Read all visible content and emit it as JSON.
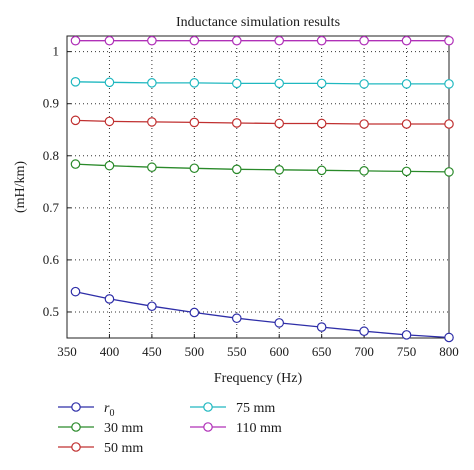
{
  "chart_data": {
    "type": "line",
    "title": "Inductance simulation results",
    "xlabel": "Frequency (Hz)",
    "ylabel": "(mH/km)",
    "xlim": [
      350,
      800
    ],
    "ylim": [
      0.45,
      1.03
    ],
    "xticks": [
      350,
      400,
      450,
      500,
      550,
      600,
      650,
      700,
      750,
      800
    ],
    "yticks": [
      0.5,
      0.6,
      0.7,
      0.8,
      0.9,
      1
    ],
    "grid": true,
    "legend_position": "below-left",
    "x": [
      360,
      400,
      450,
      500,
      550,
      600,
      650,
      700,
      750,
      800
    ],
    "series": [
      {
        "name": "r",
        "subscript": "0",
        "color": "#2e2ea8",
        "values": [
          0.539,
          0.525,
          0.511,
          0.499,
          0.488,
          0.479,
          0.471,
          0.463,
          0.456,
          0.451
        ]
      },
      {
        "name": "30 mm",
        "color": "#2a8a2a",
        "values": [
          0.784,
          0.781,
          0.778,
          0.776,
          0.774,
          0.773,
          0.772,
          0.771,
          0.77,
          0.769
        ]
      },
      {
        "name": "50 mm",
        "color": "#c03030",
        "values": [
          0.868,
          0.866,
          0.865,
          0.864,
          0.863,
          0.862,
          0.862,
          0.861,
          0.861,
          0.861
        ]
      },
      {
        "name": "75 mm",
        "color": "#20b8c0",
        "values": [
          0.942,
          0.941,
          0.94,
          0.94,
          0.939,
          0.939,
          0.939,
          0.938,
          0.938,
          0.938
        ]
      },
      {
        "name": "110 mm",
        "color": "#b030b8",
        "values": [
          1.021,
          1.021,
          1.021,
          1.021,
          1.021,
          1.021,
          1.021,
          1.021,
          1.021,
          1.021
        ]
      }
    ]
  }
}
